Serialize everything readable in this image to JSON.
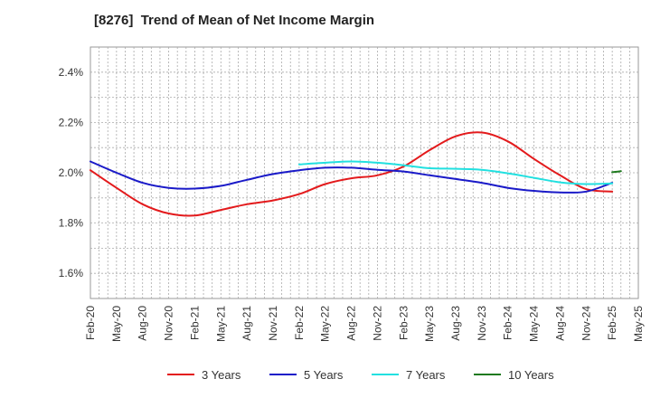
{
  "chart_data": {
    "type": "line",
    "title": "[8276]  Trend of Mean of Net Income Margin",
    "xlabel": "",
    "ylabel": "",
    "x_ticks": [
      "Feb-20",
      "May-20",
      "Aug-20",
      "Nov-20",
      "Feb-21",
      "May-21",
      "Aug-21",
      "Nov-21",
      "Feb-22",
      "May-22",
      "Aug-22",
      "Nov-22",
      "Feb-23",
      "May-23",
      "Aug-23",
      "Nov-23",
      "Feb-24",
      "May-24",
      "Aug-24",
      "Nov-24",
      "Feb-25",
      "May-25"
    ],
    "y_ticks": [
      "1.6%",
      "1.8%",
      "2.0%",
      "2.2%",
      "2.4%"
    ],
    "y_tick_values": [
      1.6,
      1.8,
      2.0,
      2.2,
      2.4
    ],
    "ylim": [
      1.5,
      2.5
    ],
    "grid": true,
    "legend_position": "bottom",
    "series": [
      {
        "name": "3 Years",
        "color": "#e31a1c",
        "points": [
          [
            "Feb-20",
            2.01
          ],
          [
            "May-20",
            1.94
          ],
          [
            "Aug-20",
            1.875
          ],
          [
            "Nov-20",
            1.838
          ],
          [
            "Feb-21",
            1.83
          ],
          [
            "May-21",
            1.852
          ],
          [
            "Aug-21",
            1.875
          ],
          [
            "Nov-21",
            1.89
          ],
          [
            "Feb-22",
            1.915
          ],
          [
            "May-22",
            1.955
          ],
          [
            "Aug-22",
            1.978
          ],
          [
            "Nov-22",
            1.99
          ],
          [
            "Feb-23",
            2.025
          ],
          [
            "May-23",
            2.09
          ],
          [
            "Aug-23",
            2.145
          ],
          [
            "Nov-23",
            2.16
          ],
          [
            "Feb-24",
            2.125
          ],
          [
            "May-24",
            2.055
          ],
          [
            "Aug-24",
            1.99
          ],
          [
            "Nov-24",
            1.935
          ],
          [
            "Feb-25",
            1.925
          ]
        ]
      },
      {
        "name": "5 Years",
        "color": "#1a1ac8",
        "points": [
          [
            "Feb-20",
            2.045
          ],
          [
            "May-20",
            2.0
          ],
          [
            "Aug-20",
            1.96
          ],
          [
            "Nov-20",
            1.94
          ],
          [
            "Feb-21",
            1.937
          ],
          [
            "May-21",
            1.948
          ],
          [
            "Aug-21",
            1.972
          ],
          [
            "Nov-21",
            1.995
          ],
          [
            "Feb-22",
            2.01
          ],
          [
            "May-22",
            2.02
          ],
          [
            "Aug-22",
            2.02
          ],
          [
            "Nov-22",
            2.012
          ],
          [
            "Feb-23",
            2.005
          ],
          [
            "May-23",
            1.99
          ],
          [
            "Aug-23",
            1.975
          ],
          [
            "Nov-23",
            1.96
          ],
          [
            "Feb-24",
            1.94
          ],
          [
            "May-24",
            1.928
          ],
          [
            "Aug-24",
            1.922
          ],
          [
            "Nov-24",
            1.925
          ],
          [
            "Feb-25",
            1.96
          ]
        ]
      },
      {
        "name": "7 Years",
        "color": "#22e0e0",
        "points": [
          [
            "Feb-22",
            2.033
          ],
          [
            "May-22",
            2.04
          ],
          [
            "Aug-22",
            2.045
          ],
          [
            "Nov-22",
            2.04
          ],
          [
            "Feb-23",
            2.03
          ],
          [
            "May-23",
            2.018
          ],
          [
            "Aug-23",
            2.016
          ],
          [
            "Nov-23",
            2.012
          ],
          [
            "Feb-24",
            1.998
          ],
          [
            "May-24",
            1.98
          ],
          [
            "Aug-24",
            1.962
          ],
          [
            "Nov-24",
            1.955
          ],
          [
            "Feb-25",
            1.958
          ]
        ]
      },
      {
        "name": "10 Years",
        "color": "#1f7a1f",
        "points": [
          [
            "Feb-25",
            2.002
          ],
          [
            "Mar-25",
            2.006
          ]
        ]
      }
    ]
  }
}
